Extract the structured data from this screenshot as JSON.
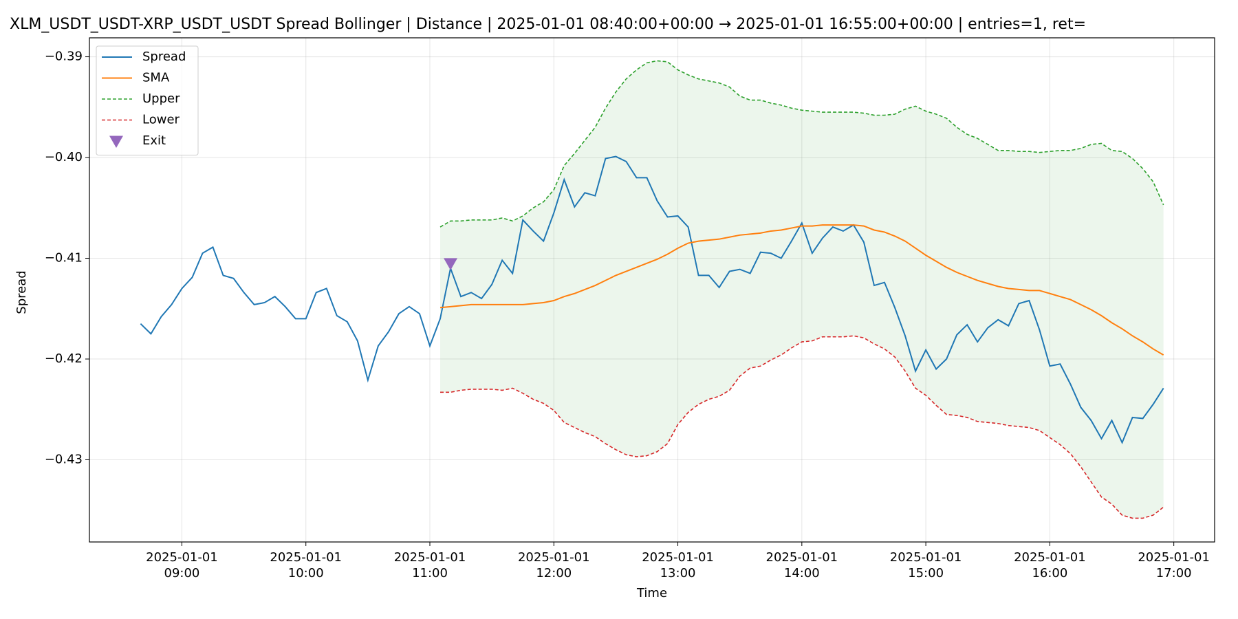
{
  "chart_data": {
    "type": "line",
    "title": "XLM_USDT_USDT-XRP_USDT_USDT Spread Bollinger  | Distance | 2025-01-01 08:40:00+00:00 → 2025-01-01 16:55:00+00:00 | entries=1, ret=",
    "x_label": "Time",
    "y_label": "Spread",
    "x": [
      "2025-01-01 08:40",
      "2025-01-01 08:45",
      "2025-01-01 08:50",
      "2025-01-01 08:55",
      "2025-01-01 09:00",
      "2025-01-01 09:05",
      "2025-01-01 09:10",
      "2025-01-01 09:15",
      "2025-01-01 09:20",
      "2025-01-01 09:25",
      "2025-01-01 09:30",
      "2025-01-01 09:35",
      "2025-01-01 09:40",
      "2025-01-01 09:45",
      "2025-01-01 09:50",
      "2025-01-01 09:55",
      "2025-01-01 10:00",
      "2025-01-01 10:05",
      "2025-01-01 10:10",
      "2025-01-01 10:15",
      "2025-01-01 10:20",
      "2025-01-01 10:25",
      "2025-01-01 10:30",
      "2025-01-01 10:35",
      "2025-01-01 10:40",
      "2025-01-01 10:45",
      "2025-01-01 10:50",
      "2025-01-01 10:55",
      "2025-01-01 11:00",
      "2025-01-01 11:05",
      "2025-01-01 11:10",
      "2025-01-01 11:15",
      "2025-01-01 11:20",
      "2025-01-01 11:25",
      "2025-01-01 11:30",
      "2025-01-01 11:35",
      "2025-01-01 11:40",
      "2025-01-01 11:45",
      "2025-01-01 11:50",
      "2025-01-01 11:55",
      "2025-01-01 12:00",
      "2025-01-01 12:05",
      "2025-01-01 12:10",
      "2025-01-01 12:15",
      "2025-01-01 12:20",
      "2025-01-01 12:25",
      "2025-01-01 12:30",
      "2025-01-01 12:35",
      "2025-01-01 12:40",
      "2025-01-01 12:45",
      "2025-01-01 12:50",
      "2025-01-01 12:55",
      "2025-01-01 13:00",
      "2025-01-01 13:05",
      "2025-01-01 13:10",
      "2025-01-01 13:15",
      "2025-01-01 13:20",
      "2025-01-01 13:25",
      "2025-01-01 13:30",
      "2025-01-01 13:35",
      "2025-01-01 13:40",
      "2025-01-01 13:45",
      "2025-01-01 13:50",
      "2025-01-01 13:55",
      "2025-01-01 14:00",
      "2025-01-01 14:05",
      "2025-01-01 14:10",
      "2025-01-01 14:15",
      "2025-01-01 14:20",
      "2025-01-01 14:25",
      "2025-01-01 14:30",
      "2025-01-01 14:35",
      "2025-01-01 14:40",
      "2025-01-01 14:45",
      "2025-01-01 14:50",
      "2025-01-01 14:55",
      "2025-01-01 15:00",
      "2025-01-01 15:05",
      "2025-01-01 15:10",
      "2025-01-01 15:15",
      "2025-01-01 15:20",
      "2025-01-01 15:25",
      "2025-01-01 15:30",
      "2025-01-01 15:35",
      "2025-01-01 15:40",
      "2025-01-01 15:45",
      "2025-01-01 15:50",
      "2025-01-01 15:55",
      "2025-01-01 16:00",
      "2025-01-01 16:05",
      "2025-01-01 16:10",
      "2025-01-01 16:15",
      "2025-01-01 16:20",
      "2025-01-01 16:25",
      "2025-01-01 16:30",
      "2025-01-01 16:35",
      "2025-01-01 16:40",
      "2025-01-01 16:45",
      "2025-01-01 16:50",
      "2025-01-01 16:55"
    ],
    "series": [
      {
        "name": "Spread",
        "color": "#1f77b4",
        "values": [
          -0.4165,
          -0.4175,
          -0.4158,
          -0.4146,
          -0.413,
          -0.4119,
          -0.4095,
          -0.4089,
          -0.4117,
          -0.412,
          -0.4134,
          -0.4146,
          -0.4144,
          -0.4138,
          -0.4148,
          -0.416,
          -0.416,
          -0.4134,
          -0.413,
          -0.4157,
          -0.4163,
          -0.4182,
          -0.4221,
          -0.4187,
          -0.4173,
          -0.4155,
          -0.4148,
          -0.4155,
          -0.4187,
          -0.416,
          -0.411,
          -0.4138,
          -0.4134,
          -0.414,
          -0.4126,
          -0.4102,
          -0.4115,
          -0.4062,
          -0.4073,
          -0.4083,
          -0.4055,
          -0.4022,
          -0.4049,
          -0.4035,
          -0.4038,
          -0.4001,
          -0.3999,
          -0.4004,
          -0.402,
          -0.402,
          -0.4043,
          -0.4059,
          -0.4058,
          -0.4069,
          -0.4117,
          -0.4117,
          -0.4129,
          -0.4113,
          -0.4111,
          -0.4115,
          -0.4094,
          -0.4095,
          -0.41,
          -0.4083,
          -0.4065,
          -0.4095,
          -0.408,
          -0.4069,
          -0.4073,
          -0.4067,
          -0.4084,
          -0.4127,
          -0.4124,
          -0.4149,
          -0.4177,
          -0.4212,
          -0.4191,
          -0.421,
          -0.42,
          -0.4176,
          -0.4166,
          -0.4183,
          -0.4169,
          -0.4161,
          -0.4167,
          -0.4145,
          -0.4142,
          -0.4171,
          -0.4207,
          -0.4205,
          -0.4225,
          -0.4248,
          -0.4261,
          -0.4279,
          -0.4261,
          -0.4283,
          -0.4258,
          -0.4259,
          -0.4245,
          -0.4229
        ]
      },
      {
        "name": "SMA",
        "color": "#ff7f0e",
        "values": [
          null,
          null,
          null,
          null,
          null,
          null,
          null,
          null,
          null,
          null,
          null,
          null,
          null,
          null,
          null,
          null,
          null,
          null,
          null,
          null,
          null,
          null,
          null,
          null,
          null,
          null,
          null,
          null,
          null,
          -0.4149,
          -0.4148,
          -0.4147,
          -0.4146,
          -0.4146,
          -0.4146,
          -0.4146,
          -0.4146,
          -0.4146,
          -0.4145,
          -0.4144,
          -0.4142,
          -0.4138,
          -0.4135,
          -0.4131,
          -0.4127,
          -0.4122,
          -0.4117,
          -0.4113,
          -0.4109,
          -0.4105,
          -0.4101,
          -0.4096,
          -0.409,
          -0.4085,
          -0.4083,
          -0.4082,
          -0.4081,
          -0.4079,
          -0.4077,
          -0.4076,
          -0.4075,
          -0.4073,
          -0.4072,
          -0.407,
          -0.4068,
          -0.4068,
          -0.4067,
          -0.4067,
          -0.4067,
          -0.4067,
          -0.4068,
          -0.4072,
          -0.4074,
          -0.4078,
          -0.4083,
          -0.409,
          -0.4097,
          -0.4103,
          -0.4109,
          -0.4114,
          -0.4118,
          -0.4122,
          -0.4125,
          -0.4128,
          -0.413,
          -0.4131,
          -0.4132,
          -0.4132,
          -0.4135,
          -0.4138,
          -0.4141,
          -0.4146,
          -0.4151,
          -0.4157,
          -0.4164,
          -0.417,
          -0.4177,
          -0.4183,
          -0.419,
          -0.4196
        ]
      },
      {
        "name": "Upper",
        "color": "#2ca02c",
        "dashed": true,
        "values": [
          null,
          null,
          null,
          null,
          null,
          null,
          null,
          null,
          null,
          null,
          null,
          null,
          null,
          null,
          null,
          null,
          null,
          null,
          null,
          null,
          null,
          null,
          null,
          null,
          null,
          null,
          null,
          null,
          null,
          -0.4069,
          -0.4063,
          -0.4063,
          -0.4062,
          -0.4062,
          -0.4062,
          -0.406,
          -0.4063,
          -0.4058,
          -0.405,
          -0.4044,
          -0.4032,
          -0.4008,
          -0.3996,
          -0.3983,
          -0.397,
          -0.3951,
          -0.3935,
          -0.3922,
          -0.3913,
          -0.3906,
          -0.3904,
          -0.3905,
          -0.3913,
          -0.3918,
          -0.3922,
          -0.3924,
          -0.3926,
          -0.393,
          -0.3939,
          -0.3943,
          -0.3943,
          -0.3946,
          -0.3948,
          -0.3951,
          -0.3953,
          -0.3954,
          -0.3955,
          -0.3955,
          -0.3955,
          -0.3955,
          -0.3956,
          -0.3958,
          -0.3958,
          -0.3957,
          -0.3952,
          -0.3949,
          -0.3954,
          -0.3957,
          -0.3961,
          -0.397,
          -0.3977,
          -0.3981,
          -0.3987,
          -0.3993,
          -0.3993,
          -0.3994,
          -0.3994,
          -0.3995,
          -0.3994,
          -0.3993,
          -0.3993,
          -0.3991,
          -0.3987,
          -0.3986,
          -0.3993,
          -0.3994,
          -0.4001,
          -0.4011,
          -0.4024,
          -0.4047
        ]
      },
      {
        "name": "Lower",
        "color": "#d62728",
        "dashed": true,
        "values": [
          null,
          null,
          null,
          null,
          null,
          null,
          null,
          null,
          null,
          null,
          null,
          null,
          null,
          null,
          null,
          null,
          null,
          null,
          null,
          null,
          null,
          null,
          null,
          null,
          null,
          null,
          null,
          null,
          null,
          -0.4233,
          -0.4233,
          -0.4231,
          -0.423,
          -0.423,
          -0.423,
          -0.4231,
          -0.4229,
          -0.4234,
          -0.424,
          -0.4244,
          -0.4251,
          -0.4263,
          -0.4268,
          -0.4273,
          -0.4277,
          -0.4284,
          -0.429,
          -0.4295,
          -0.4297,
          -0.4296,
          -0.4292,
          -0.4284,
          -0.4265,
          -0.4253,
          -0.4245,
          -0.424,
          -0.4237,
          -0.4231,
          -0.4217,
          -0.4209,
          -0.4207,
          -0.4201,
          -0.4196,
          -0.4189,
          -0.4183,
          -0.4182,
          -0.4178,
          -0.4178,
          -0.4178,
          -0.4177,
          -0.4179,
          -0.4185,
          -0.419,
          -0.4198,
          -0.4212,
          -0.4229,
          -0.4236,
          -0.4246,
          -0.4255,
          -0.4256,
          -0.4258,
          -0.4262,
          -0.4263,
          -0.4264,
          -0.4266,
          -0.4267,
          -0.4268,
          -0.4271,
          -0.4278,
          -0.4285,
          -0.4294,
          -0.4307,
          -0.4322,
          -0.4337,
          -0.4344,
          -0.4355,
          -0.4358,
          -0.4358,
          -0.4355,
          -0.4347
        ]
      },
      {
        "name": "Exit",
        "color": "#9467bd",
        "marker": "triangle-down",
        "x": [
          "2025-01-01 11:10"
        ],
        "values": [
          -0.4105
        ]
      }
    ],
    "band_color": "#2ca02c",
    "band_opacity": 0.09,
    "xlim": [
      "2025-01-01 08:15:15",
      "2025-01-01 17:19:45"
    ],
    "xticks": [
      {
        "value": "2025-01-01 09:00",
        "label": "2025-01-01\n09:00"
      },
      {
        "value": "2025-01-01 10:00",
        "label": "2025-01-01\n10:00"
      },
      {
        "value": "2025-01-01 11:00",
        "label": "2025-01-01\n11:00"
      },
      {
        "value": "2025-01-01 12:00",
        "label": "2025-01-01\n12:00"
      },
      {
        "value": "2025-01-01 13:00",
        "label": "2025-01-01\n13:00"
      },
      {
        "value": "2025-01-01 14:00",
        "label": "2025-01-01\n14:00"
      },
      {
        "value": "2025-01-01 15:00",
        "label": "2025-01-01\n15:00"
      },
      {
        "value": "2025-01-01 16:00",
        "label": "2025-01-01\n16:00"
      },
      {
        "value": "2025-01-01 17:00",
        "label": "2025-01-01\n17:00"
      }
    ],
    "ylim": [
      -0.43816,
      -0.38812
    ],
    "yticks": [
      {
        "value": -0.43,
        "label": "−0.43"
      },
      {
        "value": -0.42,
        "label": "−0.42"
      },
      {
        "value": -0.41,
        "label": "−0.41"
      },
      {
        "value": -0.4,
        "label": "−0.40"
      },
      {
        "value": -0.39,
        "label": "−0.39"
      }
    ],
    "grid": true,
    "legend": "upper left"
  }
}
